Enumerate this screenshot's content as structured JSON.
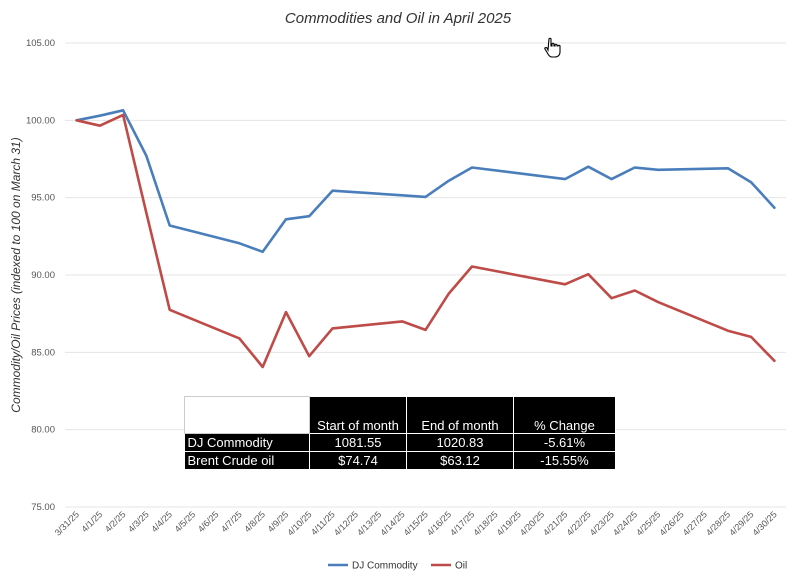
{
  "chart_data": {
    "type": "line",
    "title": "Commodities and Oil in April 2025",
    "xlabel": "",
    "ylabel": "Commodity/Oil Prices (indexed to 100 on March 31)",
    "ylim": [
      75,
      105
    ],
    "yticks": [
      "75.00",
      "80.00",
      "85.00",
      "90.00",
      "95.00",
      "100.00",
      "105.00"
    ],
    "grid": true,
    "legend": "bottom",
    "categories": [
      "3/31/25",
      "4/1/25",
      "4/2/25",
      "4/3/25",
      "4/4/25",
      "4/5/25",
      "4/6/25",
      "4/7/25",
      "4/8/25",
      "4/9/25",
      "4/10/25",
      "4/11/25",
      "4/12/25",
      "4/13/25",
      "4/14/25",
      "4/15/25",
      "4/16/25",
      "4/17/25",
      "4/18/25",
      "4/19/25",
      "4/20/25",
      "4/21/25",
      "4/22/25",
      "4/23/25",
      "4/24/25",
      "4/25/25",
      "4/26/25",
      "4/27/25",
      "4/28/25",
      "4/29/25",
      "4/30/25"
    ],
    "series": [
      {
        "name": "DJ Commodity",
        "color": "#4a7ebb",
        "points": [
          {
            "x": "3/31/25",
            "y": 100.0
          },
          {
            "x": "4/1/25",
            "y": 100.3
          },
          {
            "x": "4/2/25",
            "y": 100.65
          },
          {
            "x": "4/3/25",
            "y": 97.7
          },
          {
            "x": "4/4/25",
            "y": 93.2
          },
          {
            "x": "4/7/25",
            "y": 92.05
          },
          {
            "x": "4/8/25",
            "y": 91.5
          },
          {
            "x": "4/9/25",
            "y": 93.6
          },
          {
            "x": "4/10/25",
            "y": 93.8
          },
          {
            "x": "4/11/25",
            "y": 95.45
          },
          {
            "x": "4/14/25",
            "y": 95.15
          },
          {
            "x": "4/15/25",
            "y": 95.05
          },
          {
            "x": "4/16/25",
            "y": 96.1
          },
          {
            "x": "4/17/25",
            "y": 96.95
          },
          {
            "x": "4/21/25",
            "y": 96.2
          },
          {
            "x": "4/22/25",
            "y": 97.0
          },
          {
            "x": "4/23/25",
            "y": 96.2
          },
          {
            "x": "4/24/25",
            "y": 96.95
          },
          {
            "x": "4/25/25",
            "y": 96.8
          },
          {
            "x": "4/28/25",
            "y": 96.9
          },
          {
            "x": "4/29/25",
            "y": 96.0
          },
          {
            "x": "4/30/25",
            "y": 94.35
          }
        ]
      },
      {
        "name": "Oil",
        "color": "#be4b48",
        "points": [
          {
            "x": "3/31/25",
            "y": 100.0
          },
          {
            "x": "4/1/25",
            "y": 99.65
          },
          {
            "x": "4/2/25",
            "y": 100.35
          },
          {
            "x": "4/3/25",
            "y": 94.0
          },
          {
            "x": "4/4/25",
            "y": 87.75
          },
          {
            "x": "4/7/25",
            "y": 85.9
          },
          {
            "x": "4/8/25",
            "y": 84.05
          },
          {
            "x": "4/9/25",
            "y": 87.6
          },
          {
            "x": "4/10/25",
            "y": 84.75
          },
          {
            "x": "4/11/25",
            "y": 86.55
          },
          {
            "x": "4/14/25",
            "y": 87.0
          },
          {
            "x": "4/15/25",
            "y": 86.45
          },
          {
            "x": "4/16/25",
            "y": 88.8
          },
          {
            "x": "4/17/25",
            "y": 90.55
          },
          {
            "x": "4/21/25",
            "y": 89.4
          },
          {
            "x": "4/22/25",
            "y": 90.05
          },
          {
            "x": "4/23/25",
            "y": 88.5
          },
          {
            "x": "4/24/25",
            "y": 89.0
          },
          {
            "x": "4/25/25",
            "y": 88.25
          },
          {
            "x": "4/28/25",
            "y": 86.4
          },
          {
            "x": "4/29/25",
            "y": 86.0
          },
          {
            "x": "4/30/25",
            "y": 84.45
          }
        ]
      }
    ]
  },
  "table": {
    "headers": [
      "",
      "Start of month",
      "End of month",
      "% Change"
    ],
    "rows": [
      [
        "DJ Commodity",
        "1081.55",
        "1020.83",
        "-5.61%"
      ],
      [
        "Brent Crude oil",
        "$74.74",
        "$63.12",
        "-15.55%"
      ]
    ]
  },
  "cursor_icon": "hand-pointer-icon"
}
